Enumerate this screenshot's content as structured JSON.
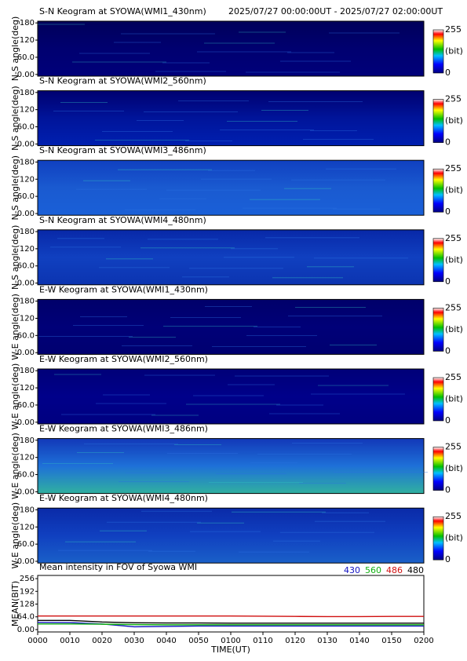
{
  "header": {
    "time_range": "2025/07/27 00:00:00UT - 2025/07/27 02:00:00UT"
  },
  "chart_data": [
    {
      "type": "keogram",
      "title": "S-N Keogram at SYOWA(WMI1_430nm)",
      "y_label": "N-S angle(deg)",
      "ylim": [
        -6,
        186
      ],
      "yticks": [
        {
          "value": 0,
          "label": "0.00"
        },
        {
          "value": 60,
          "label": "60.0"
        },
        120,
        180
      ],
      "colorbar": {
        "ticks": [
          0,
          255
        ],
        "unit": "(bit)"
      }
    },
    {
      "type": "keogram",
      "title": "S-N Keogram at SYOWA(WMI2_560nm)",
      "y_label": "N-S angle(deg)",
      "ylim": [
        -6,
        186
      ],
      "yticks": [
        {
          "value": 0,
          "label": "0.00"
        },
        {
          "value": 60,
          "label": "60.0"
        },
        120,
        180
      ],
      "colorbar": {
        "ticks": [
          0,
          255
        ],
        "unit": "(bit)"
      }
    },
    {
      "type": "keogram",
      "title": "S-N Keogram at SYOWA(WMI3_486nm)",
      "y_label": "N-S angle(deg)",
      "ylim": [
        -6,
        186
      ],
      "yticks": [
        {
          "value": 0,
          "label": "0.00"
        },
        {
          "value": 60,
          "label": "60.0"
        },
        120,
        180
      ],
      "colorbar": {
        "ticks": [
          0,
          255
        ],
        "unit": "(bit)"
      }
    },
    {
      "type": "keogram",
      "title": "S-N Keogram at SYOWA(WMI4_480nm)",
      "y_label": "N-S angle(deg)",
      "ylim": [
        -6,
        186
      ],
      "yticks": [
        {
          "value": 0,
          "label": "0.00"
        },
        {
          "value": 60,
          "label": "60.0"
        },
        120,
        180
      ],
      "colorbar": {
        "ticks": [
          0,
          255
        ],
        "unit": "(bit)"
      }
    },
    {
      "type": "keogram",
      "title": "E-W Keogram at SYOWA(WMI1_430nm)",
      "y_label": "W-E angle(deg)",
      "ylim": [
        -6,
        186
      ],
      "yticks": [
        {
          "value": 0,
          "label": "0.00"
        },
        {
          "value": 60,
          "label": "60.0"
        },
        120,
        180
      ],
      "colorbar": {
        "ticks": [
          0,
          255
        ],
        "unit": "(bit)"
      }
    },
    {
      "type": "keogram",
      "title": "E-W Keogram at SYOWA(WMI2_560nm)",
      "y_label": "W-E angle(deg)",
      "ylim": [
        -6,
        186
      ],
      "yticks": [
        {
          "value": 0,
          "label": "0.00"
        },
        {
          "value": 60,
          "label": "60.0"
        },
        120,
        180
      ],
      "colorbar": {
        "ticks": [
          0,
          255
        ],
        "unit": "(bit)"
      }
    },
    {
      "type": "keogram",
      "title": "E-W Keogram at SYOWA(WMI3_486nm)",
      "y_label": "W-E angle(deg)",
      "ylim": [
        -6,
        186
      ],
      "yticks": [
        {
          "value": 0,
          "label": "0.00"
        },
        {
          "value": 60,
          "label": "60.0"
        },
        120,
        180
      ],
      "colorbar": {
        "ticks": [
          0,
          255
        ],
        "unit": "(bit)"
      }
    },
    {
      "type": "keogram",
      "title": "E-W Keogram at SYOWA(WMI4_480nm)",
      "y_label": "W-E angle(deg)",
      "ylim": [
        -6,
        186
      ],
      "yticks": [
        {
          "value": 0,
          "label": "0.00"
        },
        {
          "value": 60,
          "label": "60.0"
        },
        120,
        180
      ],
      "colorbar": {
        "ticks": [
          0,
          255
        ],
        "unit": "(bit)"
      }
    },
    {
      "type": "line",
      "title": "Mean intensity in FOV of Syowa WMI",
      "y_label": "MEAN(BIT)",
      "x_label": "TIME(UT)",
      "x": [
        0,
        10,
        20,
        30,
        40,
        50,
        60,
        70,
        80,
        90,
        100,
        110,
        120
      ],
      "xlim": [
        0,
        120
      ],
      "xticks": [
        {
          "value": 0,
          "label": "0000"
        },
        {
          "value": 10,
          "label": "0010"
        },
        {
          "value": 20,
          "label": "0020"
        },
        {
          "value": 30,
          "label": "0030"
        },
        {
          "value": 40,
          "label": "0040"
        },
        {
          "value": 50,
          "label": "0050"
        },
        {
          "value": 60,
          "label": "0100"
        },
        {
          "value": 70,
          "label": "0110"
        },
        {
          "value": 80,
          "label": "0120"
        },
        {
          "value": 90,
          "label": "0130"
        },
        {
          "value": 100,
          "label": "0140"
        },
        {
          "value": 110,
          "label": "0150"
        },
        {
          "value": 120,
          "label": "0200"
        }
      ],
      "ylim": [
        -12,
        272
      ],
      "yticks": [
        {
          "value": 0,
          "label": "0.00"
        },
        {
          "value": 64,
          "label": "64.0"
        },
        128,
        192,
        256
      ],
      "series": [
        {
          "name": "430",
          "color": "#1010c0",
          "values": [
            36,
            35,
            28,
            14,
            16,
            18,
            18,
            18,
            18,
            18,
            18,
            18,
            18
          ]
        },
        {
          "name": "560",
          "color": "#10b010",
          "values": [
            28,
            28,
            27,
            25,
            24,
            24,
            24,
            24,
            24,
            24,
            24,
            24,
            24
          ]
        },
        {
          "name": "486",
          "color": "#d01010",
          "values": [
            68,
            68,
            68,
            68,
            68,
            68,
            68,
            67,
            66,
            65,
            65,
            66,
            66
          ]
        },
        {
          "name": "480",
          "color": "#000000",
          "values": [
            46,
            46,
            38,
            34,
            33,
            33,
            32,
            32,
            32,
            32,
            32,
            32,
            32
          ]
        }
      ]
    }
  ]
}
